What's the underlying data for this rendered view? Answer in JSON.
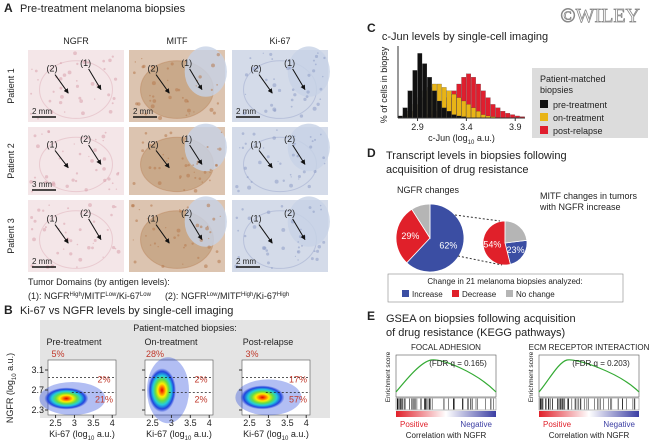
{
  "figure": {
    "watermark": "©WILEY"
  },
  "panel_a": {
    "letter": "A",
    "title": "Pre-treatment melanoma biopsies",
    "columns": [
      "NGFR",
      "MITF",
      "Ki-67"
    ],
    "rows": [
      "Patient 1",
      "Patient 2",
      "Patient 3"
    ],
    "images": [
      [
        {
          "annotations": [
            "(2)",
            "(1)"
          ],
          "scale": "2 mm"
        },
        {
          "annotations": [
            "(2)",
            "(1)"
          ],
          "scale": "2 mm"
        },
        {
          "annotations": [
            "(2)",
            "(1)"
          ],
          "scale": "2 mm"
        }
      ],
      [
        {
          "annotations": [
            "(1)",
            "(2)"
          ],
          "scale": "3 mm"
        },
        {
          "annotations": [
            "(2)",
            "(1)"
          ]
        },
        {
          "annotations": [
            "(1)",
            "(2)"
          ]
        }
      ],
      [
        {
          "annotations": [
            "(1)",
            "(2)"
          ],
          "scale": "2 mm"
        },
        {
          "annotations": [
            "(1)",
            "(2)"
          ]
        },
        {
          "annotations": [
            "(1)",
            "(2)"
          ],
          "scale": "2 mm"
        }
      ]
    ],
    "domains_title": "Tumor Domains (by antigen levels):",
    "separator": "/",
    "domains": [
      {
        "label": "(1): ",
        "parts": [
          [
            "NGFR",
            "High"
          ],
          [
            "MITF",
            "Low"
          ],
          [
            "Ki-67",
            "Low"
          ]
        ]
      },
      {
        "label": "(2): ",
        "parts": [
          [
            "NGFR",
            "Low"
          ],
          [
            "MITF",
            "High"
          ],
          [
            "Ki-67",
            "High"
          ]
        ]
      }
    ]
  },
  "panel_b": {
    "letter": "B",
    "title": "Ki-67 vs NGFR levels by single-cell imaging",
    "group_title": "Patient-matched biopsies:",
    "plots": [
      {
        "name": "Pre-treatment",
        "percent_labels": [
          "5%",
          "2%",
          "21%"
        ]
      },
      {
        "name": "On-treatment",
        "percent_labels": [
          "28%",
          "2%",
          "2%"
        ]
      },
      {
        "name": "Post-relapse",
        "percent_labels": [
          "3%",
          "17%",
          "57%"
        ]
      }
    ],
    "xlabel": [
      "Ki-67 (log",
      "10",
      " a.u.)"
    ],
    "ylabel": [
      "NGFR (log",
      "10",
      " a.u.)"
    ],
    "xlim": [
      2.3,
      4.1
    ],
    "ylim": [
      2.2,
      3.3
    ],
    "xticks": [
      2.5,
      3,
      3.5,
      4
    ],
    "yticks": [
      2.3,
      2.7,
      3.1
    ]
  },
  "chart_data": [
    {
      "type": "histogram",
      "letter": "C",
      "title": "c-Jun levels by single-cell imaging",
      "xlabel": [
        "c-Jun (log",
        "10",
        " a.u.)"
      ],
      "ylabel": "% of cells in biopsy",
      "bins": [
        2.7,
        2.75,
        2.8,
        2.85,
        2.9,
        2.95,
        3.0,
        3.05,
        3.1,
        3.15,
        3.2,
        3.25,
        3.3,
        3.35,
        3.4,
        3.45,
        3.5,
        3.55,
        3.6,
        3.65,
        3.7,
        3.75,
        3.8,
        3.85,
        3.9,
        3.95,
        4.0
      ],
      "series": [
        {
          "name": "pre-treatment",
          "color": "#111111",
          "values": [
            0.3,
            1.5,
            4,
            7,
            9.5,
            8,
            6,
            4,
            2.5,
            1.5,
            1,
            0.5,
            0.3,
            0.2,
            0,
            0,
            0,
            0,
            0,
            0,
            0,
            0,
            0,
            0,
            0,
            0
          ]
        },
        {
          "name": "on-treatment",
          "color": "#e8b417",
          "values": [
            0,
            0.5,
            1,
            2,
            3,
            4,
            4.5,
            5,
            5,
            4.5,
            4,
            3.5,
            3,
            2.5,
            2,
            1.5,
            1,
            0.5,
            0.3,
            0.2,
            0,
            0,
            0,
            0,
            0,
            0
          ]
        },
        {
          "name": "post-relapse",
          "color": "#e01e2e",
          "values": [
            0,
            0,
            0,
            0,
            0,
            0,
            0.5,
            1,
            1.5,
            2,
            3,
            4,
            5,
            6,
            6.5,
            6,
            5,
            4,
            3,
            2,
            1.5,
            1,
            0.7,
            0.5,
            0.3,
            0.2
          ]
        }
      ],
      "xlim": [
        2.7,
        4.0
      ],
      "ylim": [
        0,
        10
      ],
      "xticks": [
        2.9,
        3.4,
        3.9
      ],
      "legend_title": [
        "Patient-matched",
        "biopsies"
      ]
    },
    {
      "type": "pie",
      "title": [
        "NGFR changes"
      ],
      "categories": [
        "Increase",
        "Decrease",
        "No change"
      ],
      "colors": [
        "#3b4ea3",
        "#e0202a",
        "#b5b5b5"
      ],
      "values": [
        62,
        29,
        9
      ],
      "value_labels": [
        "62%",
        "29%",
        null
      ]
    },
    {
      "type": "pie",
      "title": [
        "MITF changes in tumors",
        "with NGFR increase"
      ],
      "categories": [
        "Increase",
        "Decrease",
        "No change"
      ],
      "colors": [
        "#3b4ea3",
        "#e0202a",
        "#b5b5b5"
      ],
      "values": [
        23,
        54,
        23
      ],
      "value_labels": [
        "23%",
        "54%",
        null
      ]
    }
  ],
  "panel_d": {
    "letter": "D",
    "title": [
      "Transcript levels in biopsies following",
      "acquisition of drug resistance"
    ],
    "legend_title": "Change in 21 melanoma biopsies analyzed:"
  },
  "panel_e": {
    "letter": "E",
    "title": [
      "GSEA on biopsies following acquisition",
      "of drug resistance (KEGG pathways)"
    ],
    "plots": [
      {
        "name": "FOCAL ADHESION",
        "fdr": "(FDR q = 0.165)"
      },
      {
        "name": "ECM RECEPTOR INTERACTION",
        "fdr": "(FDR q = 0.203)"
      }
    ],
    "ylabel": "Enrichment score",
    "positive": "Positive",
    "negative": "Negative",
    "xlabel": "Correlation with NGFR"
  }
}
